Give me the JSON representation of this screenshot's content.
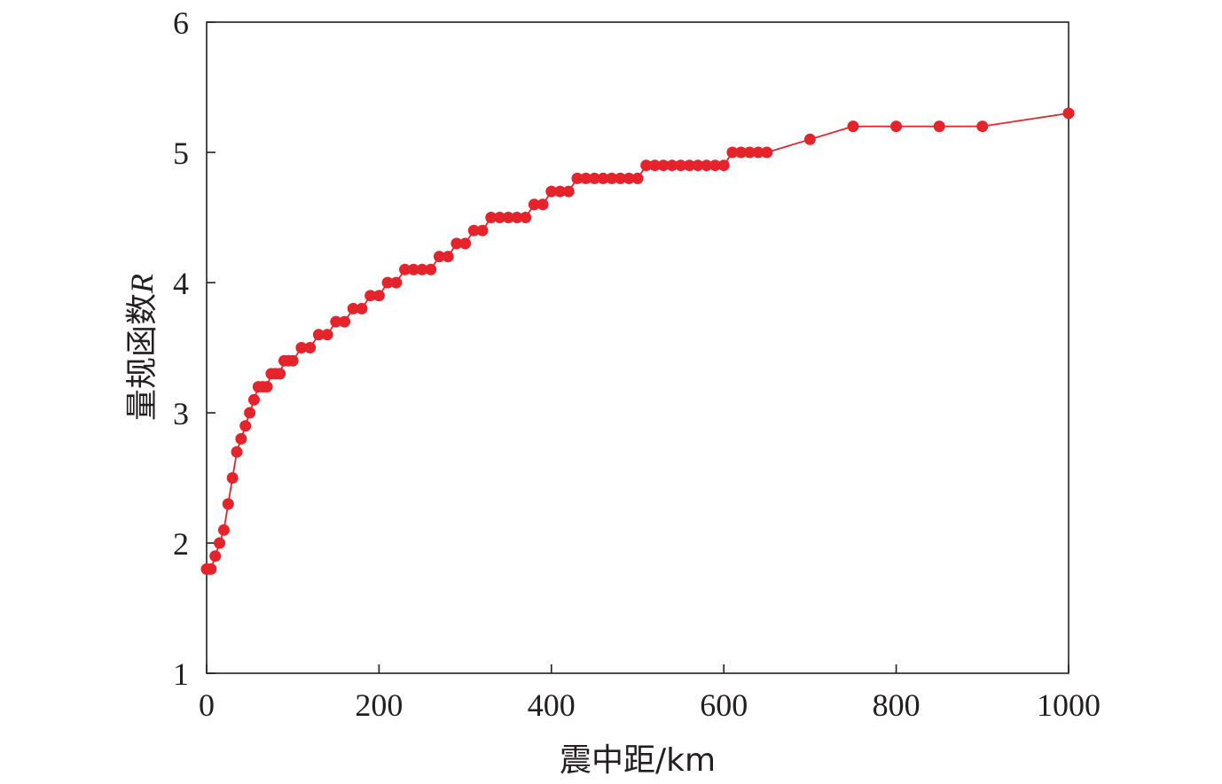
{
  "chart_data": {
    "type": "line",
    "xlabel": "震中距/km",
    "ylabel_text": "量规函数",
    "ylabel_symbol": "R",
    "xlim": [
      0,
      1000
    ],
    "ylim": [
      1,
      6
    ],
    "xticks": [
      0,
      200,
      400,
      600,
      800,
      1000
    ],
    "yticks": [
      1,
      2,
      3,
      4,
      5,
      6
    ],
    "grid": false,
    "series": [
      {
        "color": "#e5232b",
        "marker": "circle",
        "x": [
          0,
          5,
          10,
          15,
          20,
          25,
          30,
          35,
          40,
          45,
          50,
          55,
          60,
          65,
          70,
          75,
          80,
          85,
          90,
          95,
          100,
          110,
          120,
          130,
          140,
          150,
          160,
          170,
          180,
          190,
          200,
          210,
          220,
          230,
          240,
          250,
          260,
          270,
          280,
          290,
          300,
          310,
          320,
          330,
          340,
          350,
          360,
          370,
          380,
          390,
          400,
          410,
          420,
          430,
          440,
          450,
          460,
          470,
          480,
          490,
          500,
          510,
          520,
          530,
          540,
          550,
          560,
          570,
          580,
          590,
          600,
          610,
          620,
          630,
          640,
          650,
          700,
          750,
          800,
          850,
          900,
          1000
        ],
        "y": [
          1.8,
          1.8,
          1.9,
          2.0,
          2.1,
          2.3,
          2.5,
          2.7,
          2.8,
          2.9,
          3.0,
          3.1,
          3.2,
          3.2,
          3.2,
          3.3,
          3.3,
          3.3,
          3.4,
          3.4,
          3.4,
          3.5,
          3.5,
          3.6,
          3.6,
          3.7,
          3.7,
          3.8,
          3.8,
          3.9,
          3.9,
          4.0,
          4.0,
          4.1,
          4.1,
          4.1,
          4.1,
          4.2,
          4.2,
          4.3,
          4.3,
          4.4,
          4.4,
          4.5,
          4.5,
          4.5,
          4.5,
          4.5,
          4.6,
          4.6,
          4.7,
          4.7,
          4.7,
          4.8,
          4.8,
          4.8,
          4.8,
          4.8,
          4.8,
          4.8,
          4.8,
          4.9,
          4.9,
          4.9,
          4.9,
          4.9,
          4.9,
          4.9,
          4.9,
          4.9,
          4.9,
          5.0,
          5.0,
          5.0,
          5.0,
          5.0,
          5.1,
          5.2,
          5.2,
          5.2,
          5.2,
          5.3
        ]
      }
    ]
  }
}
